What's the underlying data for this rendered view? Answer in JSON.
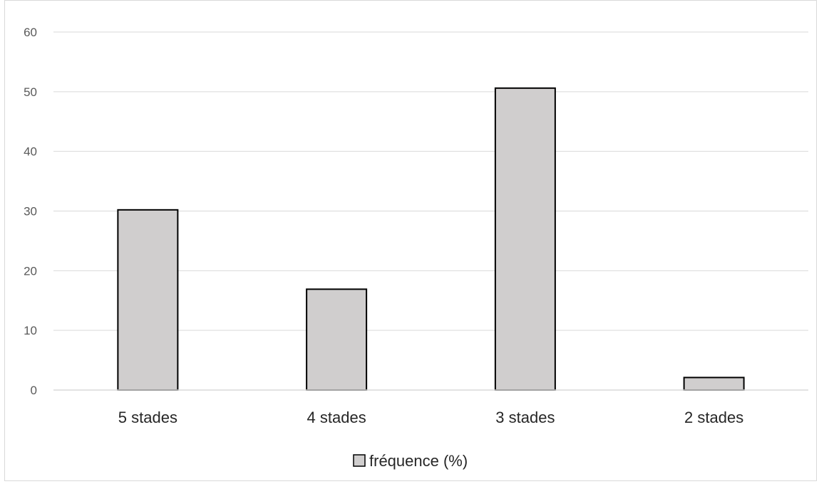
{
  "chart_data": {
    "type": "bar",
    "categories": [
      "5 stades",
      "4 stades",
      "3 stades",
      "2 stades"
    ],
    "series": [
      {
        "name": "fréquence (%)",
        "values": [
          30.2,
          16.9,
          50.6,
          2.1
        ],
        "color": "#d0cece",
        "edge_color": "#000000"
      }
    ],
    "ylim": [
      0,
      60
    ],
    "yticks": [
      "0",
      "10",
      "20",
      "30",
      "40",
      "50",
      "60"
    ],
    "grid": true,
    "legend_position": "bottom",
    "title": "",
    "xlabel": "",
    "ylabel": ""
  }
}
